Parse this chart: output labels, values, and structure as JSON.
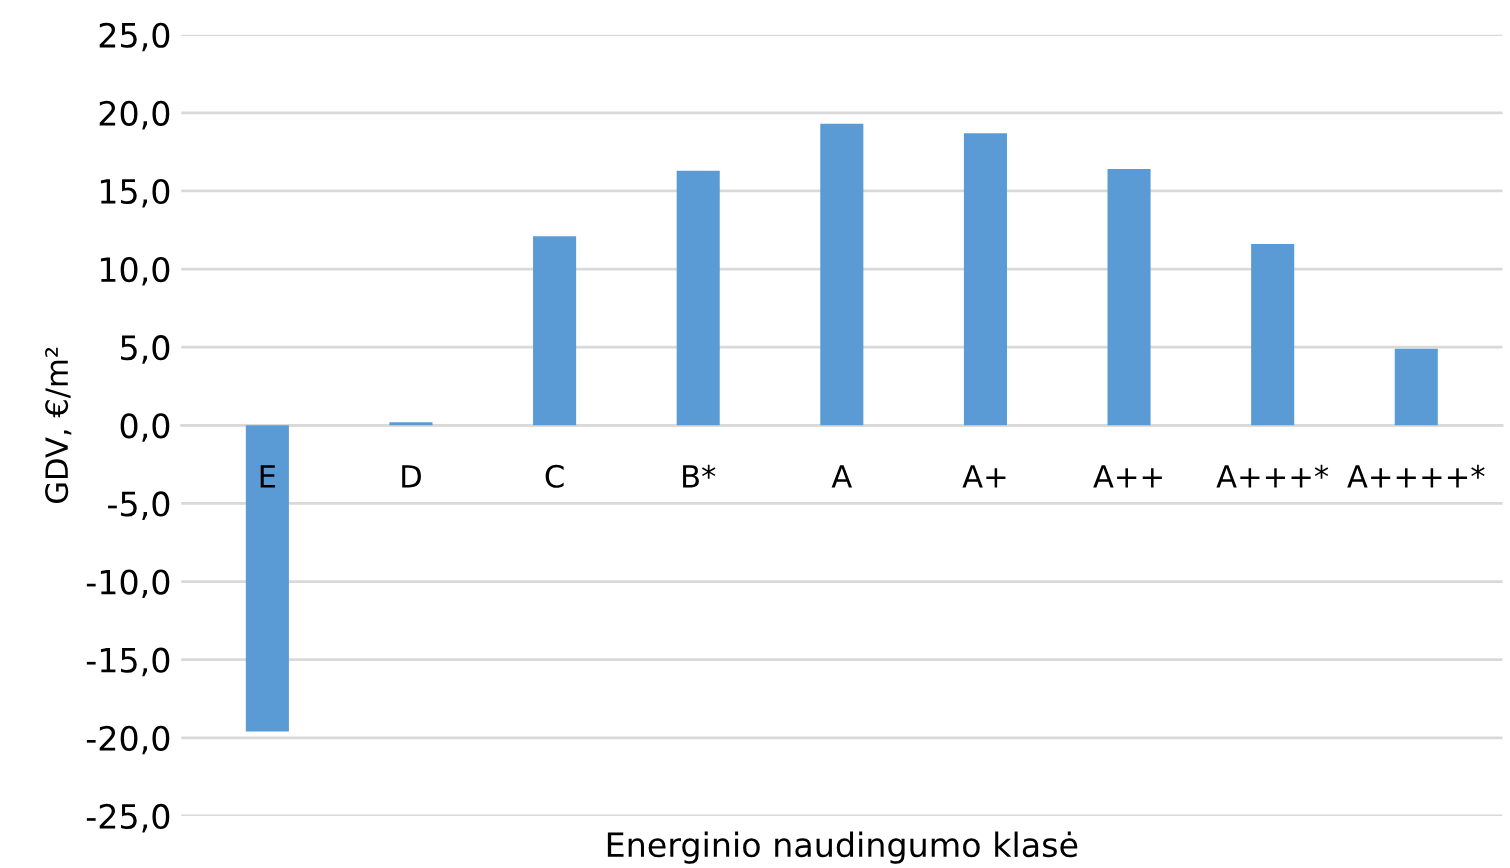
{
  "chart_data": {
    "type": "bar",
    "xlabel": "Energinio naudingumo klasė",
    "ylabel": "GDV, €/m²",
    "categories": [
      "E",
      "D",
      "C",
      "B*",
      "A",
      "A+",
      "A++",
      "A+++*",
      "A++++*"
    ],
    "values": [
      -19.6,
      0.2,
      12.1,
      16.3,
      19.3,
      18.7,
      16.4,
      11.6,
      4.9
    ],
    "color": "#5b9bd5",
    "ylim": [
      -25,
      25
    ],
    "yticks": [
      {
        "value": -25,
        "label": "-25,0"
      },
      {
        "value": -20,
        "label": "-20,0"
      },
      {
        "value": -15,
        "label": "-15,0"
      },
      {
        "value": -10,
        "label": "-10,0"
      },
      {
        "value": -5,
        "label": "-5,0"
      },
      {
        "value": 0,
        "label": "0,0"
      },
      {
        "value": 5,
        "label": "5,0"
      },
      {
        "value": 10,
        "label": "10,0"
      },
      {
        "value": 15,
        "label": "15,0"
      },
      {
        "value": 20,
        "label": "20,0"
      },
      {
        "value": 25,
        "label": "25,0"
      }
    ],
    "grid": "y",
    "legend": false
  }
}
